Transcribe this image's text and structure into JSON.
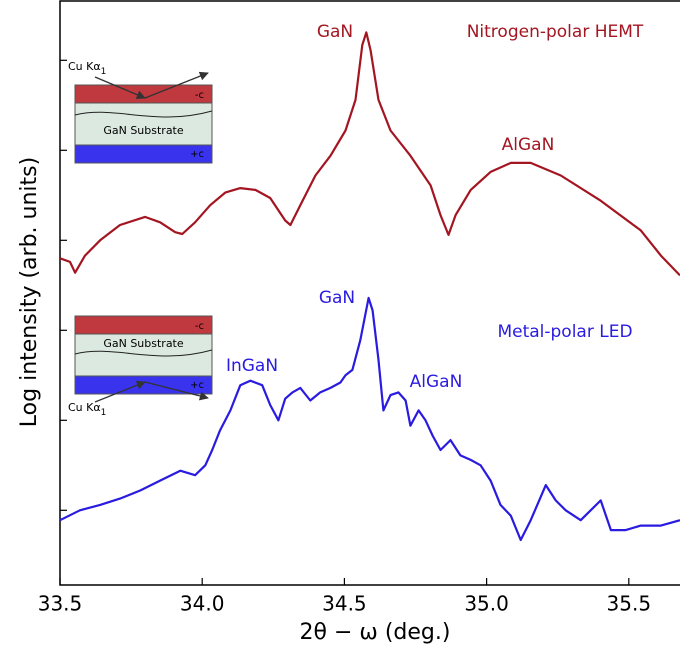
{
  "chart_data": {
    "type": "line",
    "xlabel": "2θ − ω (deg.)",
    "ylabel": "Log intensity (arb. units)",
    "xlim": [
      33.5,
      35.68
    ],
    "xticks": [
      33.5,
      {
        "value": 34,
        "label": "34.0"
      },
      34.5,
      {
        "value": 35,
        "label": "35.0"
      },
      35.5
    ],
    "ylim": [
      0.17,
      6.67
    ],
    "yticks": [
      1,
      2,
      3,
      4,
      5,
      6
    ],
    "series": [
      {
        "name": "Nitrogen-polar HEMT",
        "color": "#a31621",
        "x": [
          33.5,
          33.535,
          33.553,
          33.588,
          33.641,
          33.711,
          33.799,
          33.852,
          33.905,
          33.93,
          33.975,
          34.028,
          34.081,
          34.134,
          34.187,
          34.239,
          34.292,
          34.31,
          34.345,
          34.398,
          34.451,
          34.504,
          34.539,
          34.563,
          34.577,
          34.592,
          34.62,
          34.662,
          34.732,
          34.803,
          34.838,
          34.866,
          34.891,
          34.944,
          35.014,
          35.085,
          35.155,
          35.261,
          35.401,
          35.542,
          35.613,
          35.68
        ],
        "values": [
          3.8,
          3.76,
          3.64,
          3.83,
          4.0,
          4.17,
          4.26,
          4.2,
          4.09,
          4.07,
          4.2,
          4.39,
          4.53,
          4.58,
          4.56,
          4.47,
          4.22,
          4.17,
          4.39,
          4.72,
          4.94,
          5.22,
          5.56,
          6.17,
          6.31,
          6.11,
          5.56,
          5.22,
          4.94,
          4.61,
          4.28,
          4.06,
          4.28,
          4.56,
          4.76,
          4.86,
          4.86,
          4.72,
          4.44,
          4.11,
          3.83,
          3.61
        ]
      },
      {
        "name": "Metal-polar LED",
        "color": "#2a1be0",
        "x": [
          33.5,
          33.57,
          33.641,
          33.711,
          33.782,
          33.852,
          33.923,
          33.975,
          34.011,
          34.035,
          34.063,
          34.099,
          34.134,
          34.169,
          34.211,
          34.239,
          34.268,
          34.292,
          34.317,
          34.345,
          34.38,
          34.415,
          34.451,
          34.486,
          34.504,
          34.528,
          34.556,
          34.585,
          34.599,
          34.62,
          34.637,
          34.662,
          34.69,
          34.715,
          34.732,
          34.761,
          34.785,
          34.81,
          34.838,
          34.873,
          34.908,
          34.944,
          34.979,
          35.014,
          35.049,
          35.085,
          35.12,
          35.155,
          35.208,
          35.243,
          35.278,
          35.331,
          35.401,
          35.437,
          35.489,
          35.542,
          35.613,
          35.68
        ],
        "values": [
          0.89,
          1.0,
          1.06,
          1.13,
          1.22,
          1.33,
          1.44,
          1.39,
          1.5,
          1.67,
          1.89,
          2.11,
          2.39,
          2.44,
          2.39,
          2.17,
          2.0,
          2.24,
          2.31,
          2.36,
          2.22,
          2.31,
          2.36,
          2.42,
          2.5,
          2.56,
          2.89,
          3.36,
          3.22,
          2.67,
          2.11,
          2.28,
          2.31,
          2.22,
          1.94,
          2.11,
          2.0,
          1.83,
          1.67,
          1.78,
          1.61,
          1.56,
          1.5,
          1.33,
          1.06,
          0.94,
          0.67,
          0.89,
          1.28,
          1.11,
          1.0,
          0.89,
          1.11,
          0.78,
          0.78,
          0.83,
          0.83,
          0.89
        ]
      }
    ],
    "annotations": [
      {
        "text": "GaN",
        "color": "#a31621"
      },
      {
        "text": "AlGaN",
        "color": "#a31621"
      },
      {
        "text": "GaN",
        "color": "#2a1be0"
      },
      {
        "text": "InGaN",
        "color": "#2a1be0"
      },
      {
        "text": "AlGaN",
        "color": "#2a1be0"
      }
    ],
    "insets": [
      {
        "beam": "Cu Kα",
        "beam_sub": "1",
        "top_label": "-c",
        "substrate": "GaN Substrate",
        "bottom_label": "+c"
      },
      {
        "beam": "Cu Kα",
        "beam_sub": "1",
        "top_label": "-c",
        "substrate": "GaN Substrate",
        "bottom_label": "+c"
      }
    ]
  }
}
